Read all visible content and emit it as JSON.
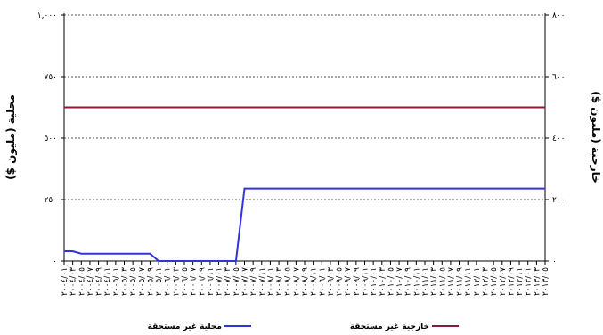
{
  "chart_data": {
    "type": "line",
    "x": [
      "٢٠٠٤/٠١",
      "٢٠٠٤/٠٣",
      "٢٠٠٤/٠٥",
      "٢٠٠٤/٠٧",
      "٢٠٠٤/٠٩",
      "٢٠٠٤/١١",
      "٢٠٠٥/٠١",
      "٢٠٠٥/٠٣",
      "٢٠٠٥/٠٥",
      "٢٠٠٥/٠٧",
      "٢٠٠٥/٠٩",
      "٢٠٠٥/١١",
      "٢٠٠٦/٠١",
      "٢٠٠٦/٠٣",
      "٢٠٠٦/٠٥",
      "٢٠٠٦/٠٧",
      "٢٠٠٦/٠٩",
      "٢٠٠٦/١١",
      "٢٠٠٧/٠١",
      "٢٠٠٧/٠٣",
      "٢٠٠٧/٠٥",
      "٢٠٠٧/٠٧",
      "٢٠٠٧/٠٩",
      "٢٠٠٧/١١",
      "٢٠٠٨/٠١",
      "٢٠٠٨/٠٣",
      "٢٠٠٨/٠٥",
      "٢٠٠٨/٠٧",
      "٢٠٠٨/٠٩",
      "٢٠٠٨/١١",
      "٢٠٠٩/٠١",
      "٢٠٠٩/٠٣",
      "٢٠٠٩/٠٥",
      "٢٠٠٩/٠٧",
      "٢٠٠٩/٠٩",
      "٢٠٠٩/١١",
      "٢٠١٠/٠١",
      "٢٠١٠/٠٣",
      "٢٠١٠/٠٥",
      "٢٠١٠/٠٧",
      "٢٠١٠/٠٩",
      "٢٠١٠/١١",
      "٢٠١١/٠١",
      "٢٠١١/٠٣",
      "٢٠١١/٠٥",
      "٢٠١١/٠٧",
      "٢٠١١/٠٩",
      "٢٠١١/١١",
      "٢٠١٢/٠١",
      "٢٠١٢/٠٣",
      "٢٠١٢/٠٥",
      "٢٠١٢/٠٧",
      "٢٠١٢/٠٩",
      "٢٠١٢/١١",
      "٢٠١٣/٠١",
      "٢٠١٣/٠٣",
      "٢٠١٣/٠٥"
    ],
    "series": [
      {
        "name": "محلية غير مستحقة",
        "axis": "left",
        "color": "#3333dd",
        "values": [
          40,
          40,
          30,
          30,
          30,
          30,
          30,
          30,
          30,
          30,
          30,
          0,
          0,
          0,
          0,
          0,
          0,
          0,
          0,
          0,
          0,
          295,
          295,
          295,
          295,
          295,
          295,
          295,
          295,
          295,
          295,
          295,
          295,
          295,
          295,
          295,
          295,
          295,
          295,
          295,
          295,
          295,
          295,
          295,
          295,
          295,
          295,
          295,
          295,
          295,
          295,
          295,
          295,
          295,
          295,
          295,
          295
        ]
      },
      {
        "name": "خارجية غير مستحقة",
        "axis": "right",
        "color": "#8b1a3a",
        "values": [
          500,
          500,
          500,
          500,
          500,
          500,
          500,
          500,
          500,
          500,
          500,
          500,
          500,
          500,
          500,
          500,
          500,
          500,
          500,
          500,
          500,
          500,
          500,
          500,
          500,
          500,
          500,
          500,
          500,
          500,
          500,
          500,
          500,
          500,
          500,
          500,
          500,
          500,
          500,
          500,
          500,
          500,
          500,
          500,
          500,
          500,
          500,
          500,
          500,
          500,
          500,
          500,
          500,
          500,
          500,
          500,
          500
        ]
      }
    ],
    "yaxis_left": {
      "label": "محلية (مليون $)",
      "range": [
        0,
        1000
      ],
      "ticks": [
        "٠",
        "٢٥٠",
        "٥٠٠",
        "٧٥٠",
        "١,٠٠٠"
      ]
    },
    "yaxis_right": {
      "label": "خارجية (مليون $)",
      "range": [
        0,
        800
      ],
      "ticks": [
        "٠",
        "٢٠٠",
        "٤٠٠",
        "٦٠٠",
        "٨٠٠"
      ]
    },
    "grid": "horizontal-dashed",
    "legend_position": "bottom"
  }
}
